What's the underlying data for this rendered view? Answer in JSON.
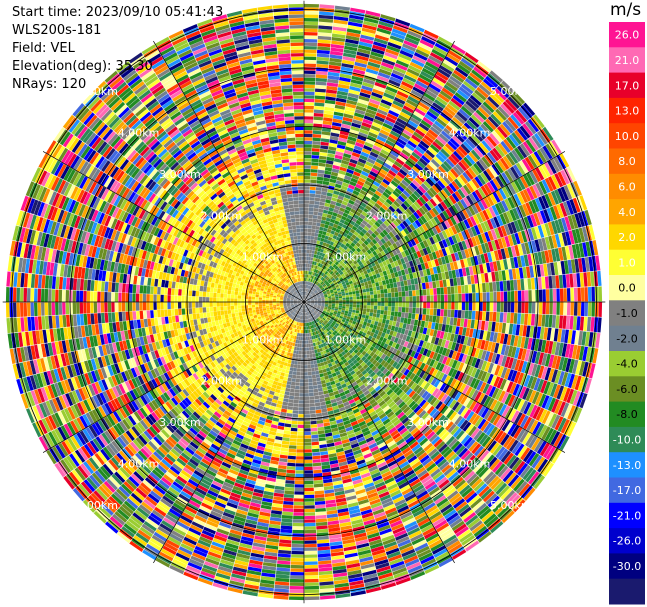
{
  "header": {
    "start_time": "Start time: 2023/09/10 05:41:43",
    "instrument": "WLS200s-181",
    "field": "Field: VEL",
    "elevation": "Elevation(deg): 35.30",
    "nrays": "NRays: 120"
  },
  "chart_data": {
    "type": "heatmap",
    "projection": "polar-ppi",
    "field": "VEL",
    "units": "m/s",
    "rays": 120,
    "range_rings_km": [
      1.0,
      2.0,
      3.0,
      4.0,
      5.0
    ],
    "ring_labels": [
      "1.00km",
      "2.00km",
      "3.00km",
      "4.00km",
      "5.00km"
    ],
    "max_range_km": 5.15,
    "spokes_deg": [
      0,
      30,
      60,
      90,
      120,
      150,
      180,
      210,
      240,
      270,
      300,
      330
    ],
    "colorbar": {
      "ticks": [
        "26.0",
        "21.0",
        "17.0",
        "13.0",
        "10.0",
        "8.0",
        "6.0",
        "4.0",
        "2.0",
        "1.0",
        "0.0",
        "-1.0",
        "-2.0",
        "-4.0",
        "-6.0",
        "-8.0",
        "-10.0",
        "-13.0",
        "-17.0",
        "-21.0",
        "-26.0",
        "-30.0"
      ],
      "colors": [
        "#ff1493",
        "#ff69b4",
        "#e8002a",
        "#ff2400",
        "#ff4500",
        "#ff6a00",
        "#ff8c00",
        "#ffa500",
        "#ffd700",
        "#ffff33",
        "#ffffa0",
        "#808080",
        "#708090",
        "#9acd32",
        "#6b8e23",
        "#228b22",
        "#2e8b57",
        "#1e90ff",
        "#4169e1",
        "#0000ff",
        "#0000cd",
        "#000080",
        "#1a1a6e"
      ],
      "vmin": -30.0,
      "vmax": 30.0
    },
    "grid": true
  }
}
